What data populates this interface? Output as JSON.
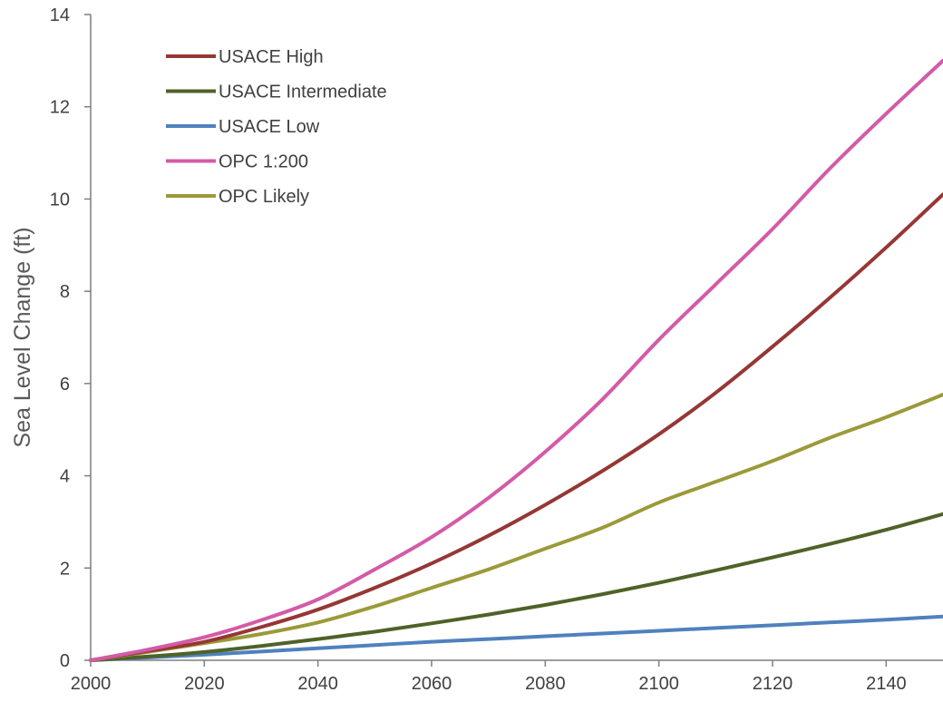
{
  "chart_data": {
    "type": "line",
    "title": "",
    "xlabel": "",
    "ylabel": "Sea Level Change (ft)",
    "xlim": [
      2000,
      2150
    ],
    "ylim": [
      0,
      14
    ],
    "x_ticks": [
      "2000",
      "2020",
      "2040",
      "2060",
      "2080",
      "2100",
      "2120",
      "2140"
    ],
    "y_ticks": [
      "0",
      "2",
      "4",
      "6",
      "8",
      "10",
      "12",
      "14"
    ],
    "grid": false,
    "legend_position": "top-left",
    "x": [
      2000,
      2010,
      2020,
      2030,
      2040,
      2050,
      2060,
      2070,
      2080,
      2090,
      2100,
      2110,
      2120,
      2130,
      2140,
      2150
    ],
    "series": [
      {
        "name": "USACE High",
        "color": "#953735",
        "values": [
          0,
          0.2,
          0.4,
          0.72,
          1.1,
          1.57,
          2.1,
          2.7,
          3.37,
          4.1,
          4.9,
          5.8,
          6.8,
          7.85,
          8.95,
          10.1
        ]
      },
      {
        "name": "USACE Intermediate",
        "color": "#4F6228",
        "values": [
          0,
          0.08,
          0.18,
          0.31,
          0.46,
          0.62,
          0.8,
          0.99,
          1.2,
          1.43,
          1.68,
          1.95,
          2.23,
          2.52,
          2.83,
          3.17
        ]
      },
      {
        "name": "USACE Low",
        "color": "#4F81BD",
        "values": [
          0,
          0.06,
          0.12,
          0.19,
          0.26,
          0.33,
          0.4,
          0.46,
          0.52,
          0.58,
          0.64,
          0.7,
          0.76,
          0.82,
          0.88,
          0.95
        ]
      },
      {
        "name": "OPC 1:200",
        "color": "#D35BA8",
        "values": [
          0,
          0.23,
          0.5,
          0.87,
          1.32,
          1.97,
          2.67,
          3.52,
          4.52,
          5.65,
          6.95,
          8.15,
          9.35,
          10.65,
          11.85,
          13.0
        ]
      },
      {
        "name": "OPC Likely",
        "color": "#9B9A3A",
        "values": [
          0,
          0.18,
          0.37,
          0.57,
          0.82,
          1.17,
          1.57,
          1.97,
          2.42,
          2.87,
          3.42,
          3.87,
          4.32,
          4.82,
          5.27,
          5.76
        ]
      }
    ]
  }
}
